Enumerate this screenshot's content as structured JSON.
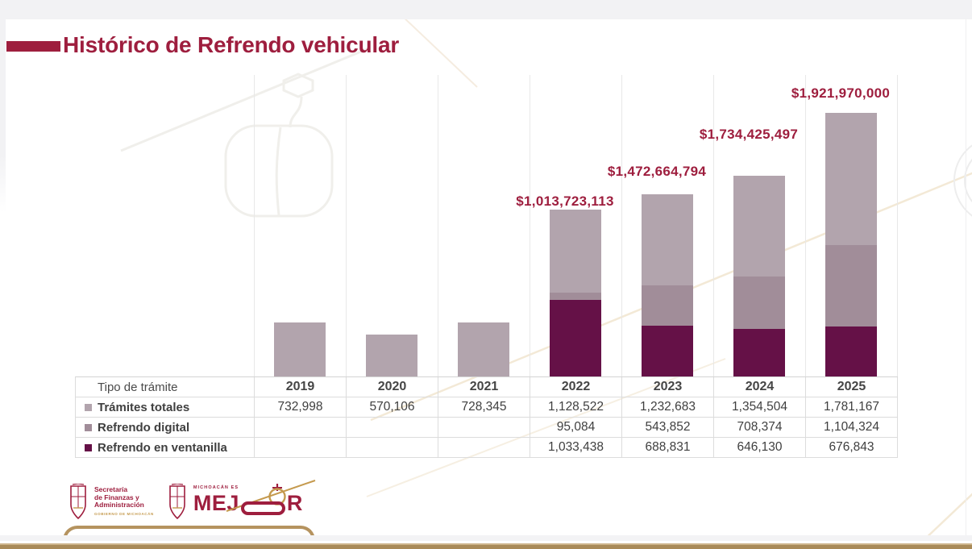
{
  "title": "Histórico de Refrendo vehicular",
  "chart_data": {
    "type": "bar",
    "subtype": "stacked",
    "categories": [
      "2019",
      "2020",
      "2021",
      "2022",
      "2023",
      "2024",
      "2025"
    ],
    "series": [
      {
        "name": "Trámites totales",
        "color": "#b2a4ad",
        "values": [
          732998,
          570106,
          728345,
          1128522,
          1232683,
          1354504,
          1781167
        ]
      },
      {
        "name": "Refrendo digital",
        "color": "#a18d99",
        "values": [
          null,
          null,
          null,
          95084,
          543852,
          708374,
          1104324
        ]
      },
      {
        "name": "Refrendo en ventanilla",
        "color": "#651147",
        "values": [
          null,
          null,
          null,
          1033438,
          688831,
          646130,
          676843
        ]
      }
    ],
    "stack_bottom_to_top": [
      "Refrendo en ventanilla",
      "Refrendo digital",
      "Trámites totales"
    ],
    "annotations": [
      {
        "category": "2022",
        "label": "$1,013,723,113"
      },
      {
        "category": "2023",
        "label": "$1,472,664,794"
      },
      {
        "category": "2024",
        "label": "$1,734,425,497"
      },
      {
        "category": "2025",
        "label": "$1,921,970,000"
      }
    ],
    "title": "Histórico de Refrendo vehicular",
    "xlabel": "",
    "ylabel": "",
    "ylim": [
      0,
      4080000
    ],
    "grid": "vertical-only",
    "legend_position": "table-rows-left",
    "value_axis_visible": false
  },
  "table": {
    "header_label": "Tipo de trámite",
    "years": [
      "2019",
      "2020",
      "2021",
      "2022",
      "2023",
      "2024",
      "2025"
    ],
    "rows": [
      {
        "label": "Trámites totales",
        "legend_color": "#b2a4ad",
        "values": [
          "732,998",
          "570,106",
          "728,345",
          "1,128,522",
          "1,232,683",
          "1,354,504",
          "1,781,167"
        ]
      },
      {
        "label": "Refrendo digital",
        "legend_color": "#a18d99",
        "values": [
          "",
          "",
          "",
          "95,084",
          "543,852",
          "708,374",
          "1,104,324"
        ]
      },
      {
        "label": "Refrendo en ventanilla",
        "legend_color": "#651147",
        "values": [
          "",
          "",
          "",
          "1,033,438",
          "688,831",
          "646,130",
          "676,843"
        ]
      }
    ]
  },
  "footer": {
    "secretaria_logo": {
      "name_line1": "Secretaría",
      "name_line2": "de Finanzas y",
      "name_line3": "Administración",
      "subtitle": "GOBIERNO DE MICHOACÁN"
    },
    "mejor_logo": {
      "tagline": "MICHOACÁN ES",
      "word_prefix": "MEJ",
      "word_suffix": "R"
    }
  },
  "colors": {
    "accent_maroon": "#9e1e3e",
    "bar_light": "#b2a4ad",
    "bar_mid": "#a18d99",
    "bar_dark": "#651147",
    "table_border": "#dcdcdc",
    "footer_tan": "#a98a58",
    "logo_gold": "#c59a4e"
  }
}
